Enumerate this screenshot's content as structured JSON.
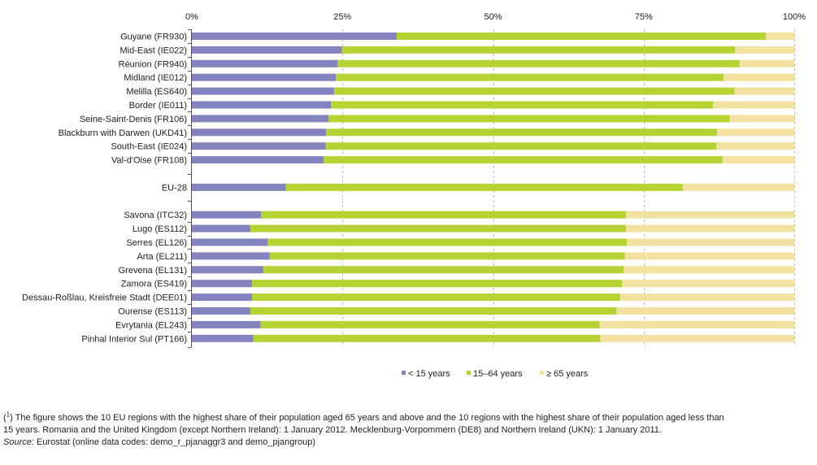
{
  "chart_data": {
    "type": "bar",
    "stacked": "percent",
    "orientation": "horizontal",
    "categories": [
      "Guyane (FR930)",
      "Mid-East (IE022)",
      "Réunion (FR940)",
      "Midland (IE012)",
      "Melilla (ES640)",
      "Border (IE011)",
      "Seine-Saint-Denis (FR106)",
      "Blackburn with Darwen (UKD41)",
      "South-East (IE024)",
      "Val-d'Oise (FR108)",
      "EU-28",
      "Savona (ITC32)",
      "Lugo (ES112)",
      "Serres (EL126)",
      "Arta (EL211)",
      "Grevena (EL131)",
      "Zamora (ES419)",
      "Dessau-Roßlau, Kreisfreie Stadt (DEE01)",
      "Ourense (ES113)",
      "Evrytania (EL243)",
      "Pinhal Interior Sul (PT166)"
    ],
    "groups": [
      10,
      1,
      10
    ],
    "series": [
      {
        "name": "< 15 years",
        "color": "#8383BF",
        "values": [
          34.0,
          24.9,
          24.2,
          23.9,
          23.6,
          23.1,
          22.7,
          22.3,
          22.2,
          21.9,
          15.6,
          11.5,
          9.7,
          12.6,
          12.9,
          11.9,
          10.0,
          10.0,
          9.7,
          11.4,
          10.2
        ]
      },
      {
        "name": "15–64 years",
        "color": "#B5D434",
        "values": [
          61.3,
          65.3,
          66.7,
          64.4,
          66.5,
          63.4,
          66.6,
          64.9,
          64.9,
          66.2,
          65.9,
          60.6,
          62.4,
          59.6,
          59.0,
          59.8,
          61.4,
          61.1,
          60.8,
          56.3,
          57.6
        ]
      },
      {
        "name": "≥ 65 years",
        "color": "#F2E1A0",
        "values": [
          4.7,
          9.8,
          9.1,
          11.7,
          9.9,
          13.5,
          10.7,
          12.8,
          12.9,
          11.9,
          18.5,
          27.9,
          27.9,
          27.8,
          28.1,
          28.3,
          28.6,
          28.9,
          29.5,
          32.3,
          32.2
        ]
      }
    ],
    "xlim": [
      0,
      100
    ],
    "xticks": [
      "0%",
      "25%",
      "50%",
      "75%",
      "100%"
    ],
    "xaxis_position": "top",
    "grid": "vertical-dashed",
    "legend_position": "bottom",
    "title": "",
    "xlabel": "",
    "ylabel": ""
  },
  "footnote": {
    "mark": "1",
    "text": "The figure shows the 10 EU regions with the highest share of their population aged 65 years and above and the 10 regions with the highest share of their population aged less than 15 years. Romania and the United Kingdom (except Northern Ireland): 1 January 2012. Mecklenburg-Vorpommern (DE8) and Northern Ireland (UKN): 1 January 2011."
  },
  "source": {
    "label": "Source:",
    "text": "Eurostat (online data codes: demo_r_pjanaggr3 and demo_pjangroup)"
  }
}
